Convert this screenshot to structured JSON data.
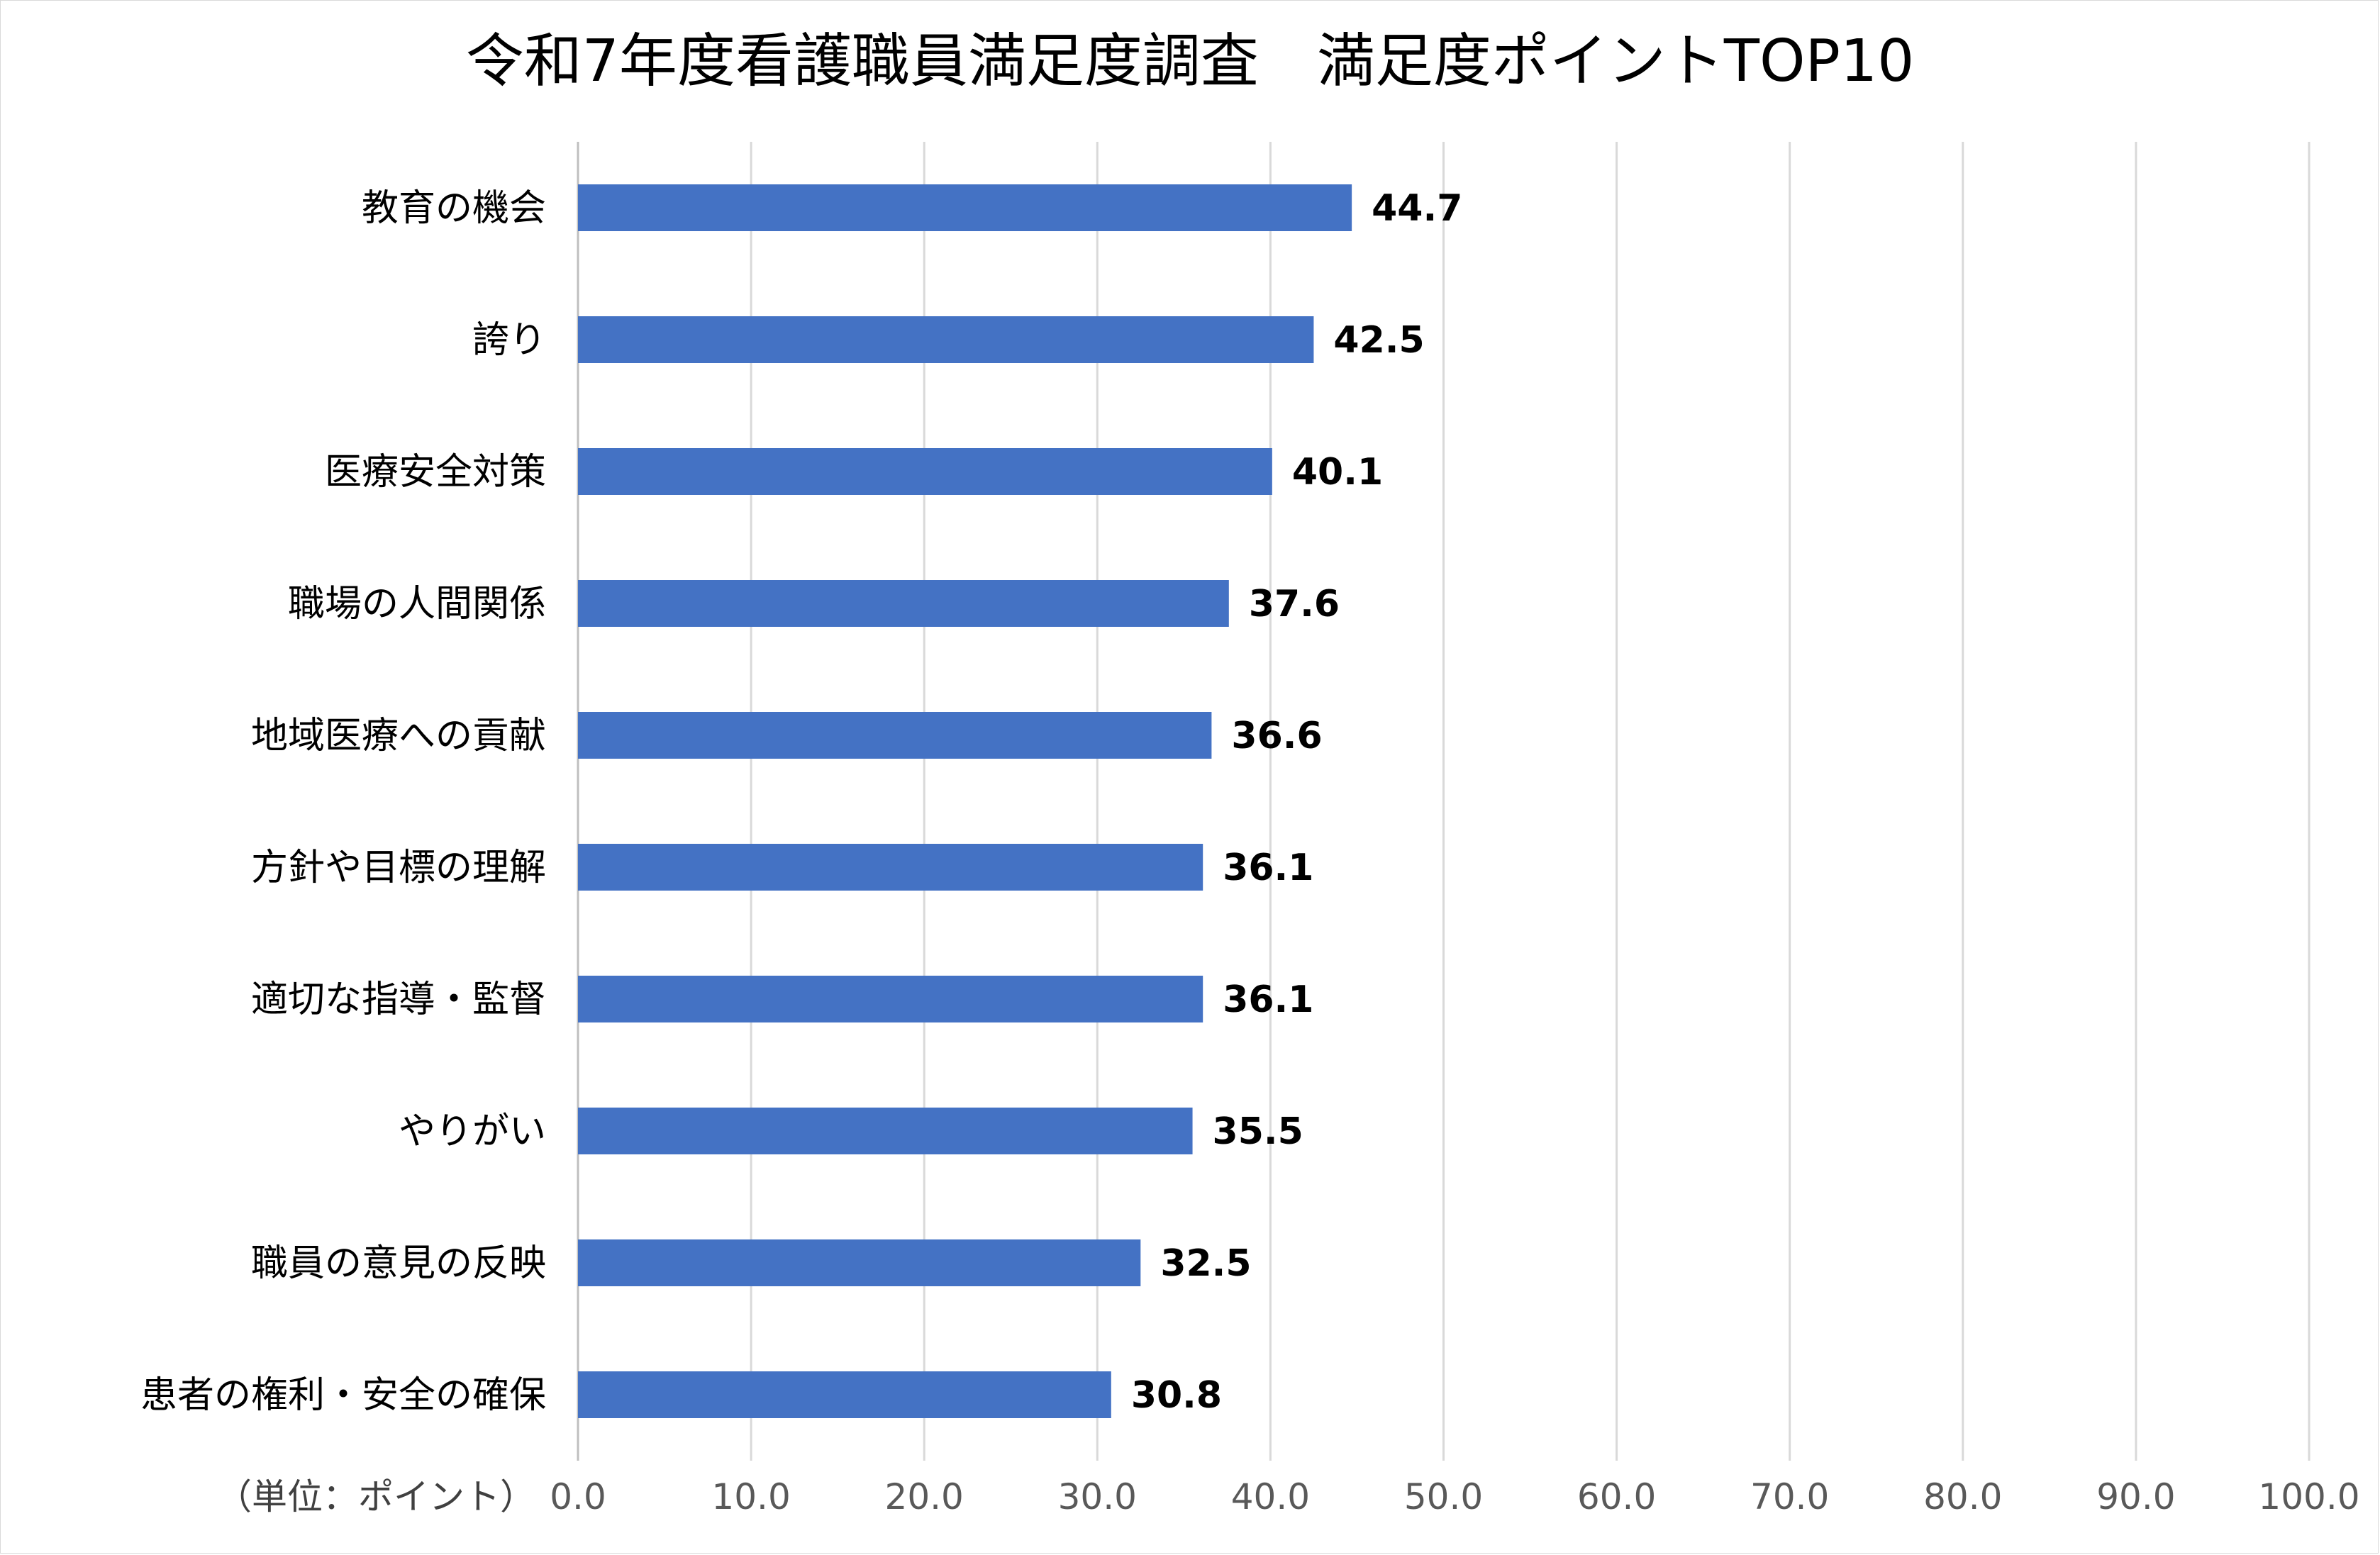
{
  "chart_data": {
    "type": "bar",
    "orientation": "horizontal",
    "title": "令和7年度看護職員満足度調査　満足度ポイントTOP10",
    "xlabel": "（単位：ポイント）",
    "ylabel": "",
    "xlim": [
      0,
      100
    ],
    "x_ticks": [
      "0.0",
      "10.0",
      "20.0",
      "30.0",
      "40.0",
      "50.0",
      "60.0",
      "70.0",
      "80.0",
      "90.0",
      "100.0"
    ],
    "grid": "vertical",
    "legend": "none",
    "bar_color": "#4472c4",
    "categories": [
      "教育の機会",
      "誇り",
      "医療安全対策",
      "職場の人間関係",
      "地域医療への貢献",
      "方針や目標の理解",
      "適切な指導・監督",
      "やりがい",
      "職員の意見の反映",
      "患者の権利・安全の確保"
    ],
    "values": [
      44.7,
      42.5,
      40.1,
      37.6,
      36.6,
      36.1,
      36.1,
      35.5,
      32.5,
      30.8
    ],
    "value_labels": [
      "44.7",
      "42.5",
      "40.1",
      "37.6",
      "36.6",
      "36.1",
      "36.1",
      "35.5",
      "32.5",
      "30.8"
    ]
  }
}
